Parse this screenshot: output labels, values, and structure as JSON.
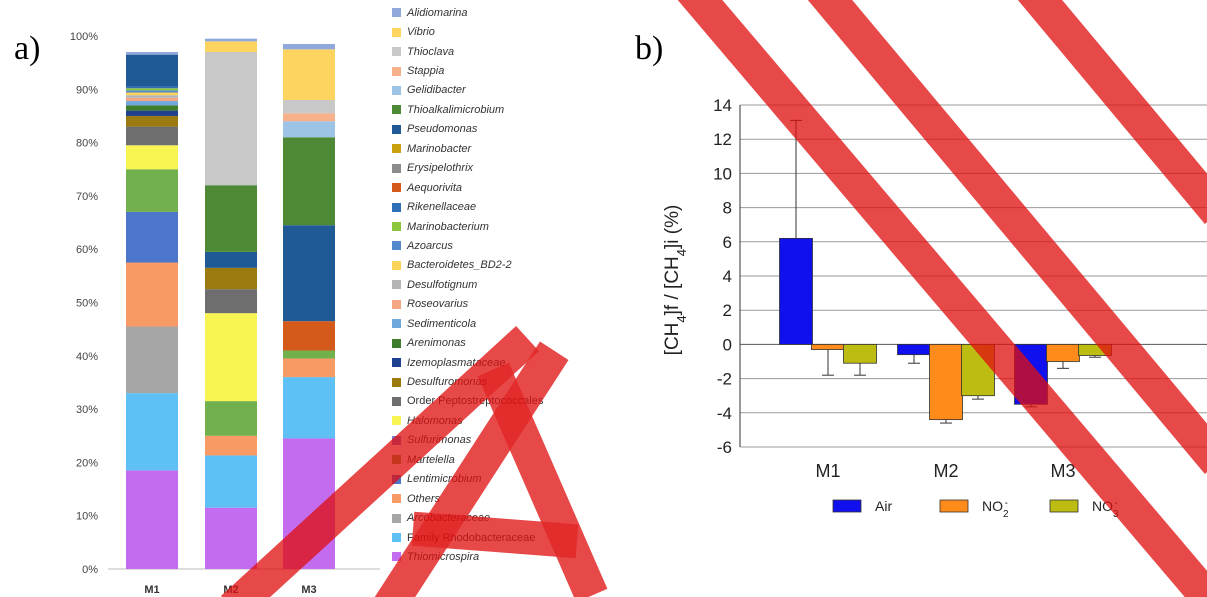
{
  "colors": {
    "watermark": "#e01010"
  },
  "panels": {
    "a_label": "a)",
    "b_label": "b)"
  },
  "chart_data": [
    {
      "type": "bar",
      "stacked": true,
      "categories": [
        "M1",
        "M2",
        "M3"
      ],
      "ylim": [
        0,
        100
      ],
      "yticks": [
        "0%",
        "10%",
        "20%",
        "30%",
        "40%",
        "50%",
        "60%",
        "70%",
        "80%",
        "90%",
        "100%"
      ],
      "series": [
        {
          "name": "Thiomicrospira",
          "color": "#c36cf0",
          "italic": true,
          "values": [
            18.5,
            11.5,
            24.5
          ]
        },
        {
          "name": "Family Rhodobacteraceae",
          "color": "#5fc0f6",
          "italic": false,
          "values": [
            14.5,
            9.8,
            11.5
          ]
        },
        {
          "name": "Arcobacteraceae",
          "color": "#a6a6a6",
          "italic": true,
          "values": [
            12.5,
            0,
            0
          ]
        },
        {
          "name": "Others",
          "color": "#f79a65",
          "italic": true,
          "values": [
            12,
            3.7,
            3.5
          ]
        },
        {
          "name": "Lentimicrobium",
          "color": "#4b76c9",
          "italic": true,
          "values": [
            9.5,
            0,
            0
          ]
        },
        {
          "name": "Martelella",
          "color": "#72b04e",
          "italic": true,
          "values": [
            8,
            6.5,
            1.5
          ]
        },
        {
          "name": "Sulfurimonas",
          "color": "#7a7ad0",
          "italic": true,
          "values": [
            0,
            0,
            0
          ]
        },
        {
          "name": "Halomonas",
          "color": "#f8f553",
          "italic": true,
          "values": [
            4.5,
            16.5,
            0
          ]
        },
        {
          "name": "Order Peptostreptococcales",
          "color": "#6e6e6e",
          "italic": false,
          "values": [
            3.5,
            4.5,
            0
          ]
        },
        {
          "name": "Desulfuromonas",
          "color": "#9b7a10",
          "italic": true,
          "values": [
            2,
            4,
            0
          ]
        },
        {
          "name": "Izemoplasmataceae",
          "color": "#1f3f8f",
          "italic": true,
          "values": [
            1,
            0,
            0
          ]
        },
        {
          "name": "Arenimonas",
          "color": "#3e7d2c",
          "italic": true,
          "values": [
            1,
            0,
            0
          ]
        },
        {
          "name": "Sedimenticola",
          "color": "#6fa8dc",
          "italic": true,
          "values": [
            0.8,
            0,
            0
          ]
        },
        {
          "name": "Roseovarius",
          "color": "#f4a582",
          "italic": true,
          "values": [
            0.6,
            0,
            0
          ]
        },
        {
          "name": "Desulfotignum",
          "color": "#b5b5b5",
          "italic": true,
          "values": [
            0.5,
            0,
            0
          ]
        },
        {
          "name": "Bacteroidetes_BD2-2",
          "color": "#fbd35a",
          "italic": true,
          "values": [
            0.5,
            0,
            0
          ]
        },
        {
          "name": "Azoarcus",
          "color": "#5588cc",
          "italic": true,
          "values": [
            0.4,
            0,
            0
          ]
        },
        {
          "name": "Marinobacterium",
          "color": "#8cc63e",
          "italic": true,
          "values": [
            0.4,
            0,
            0
          ]
        },
        {
          "name": "Rikenellaceae",
          "color": "#2f6fb5",
          "italic": true,
          "values": [
            0.3,
            0,
            0
          ]
        },
        {
          "name": "Aequorivita",
          "color": "#d35a1a",
          "italic": true,
          "values": [
            0,
            0,
            5.5
          ]
        },
        {
          "name": "Erysipelothrix",
          "color": "#8c8c8c",
          "italic": true,
          "values": [
            0,
            0,
            0
          ]
        },
        {
          "name": "Marinobacter",
          "color": "#c9a00e",
          "italic": true,
          "values": [
            0,
            0,
            0
          ]
        },
        {
          "name": "Pseudomonas",
          "color": "#1f5a96",
          "italic": true,
          "values": [
            6,
            3,
            18
          ]
        },
        {
          "name": "Thioalkalimicrobium",
          "color": "#4e8a35",
          "italic": true,
          "values": [
            0,
            12.5,
            16.5
          ]
        },
        {
          "name": "Gelidibacter",
          "color": "#9dc3e6",
          "italic": true,
          "values": [
            0,
            0,
            3
          ]
        },
        {
          "name": "Stappia",
          "color": "#f6b18a",
          "italic": true,
          "values": [
            0,
            0,
            1.5
          ]
        },
        {
          "name": "Thioclava",
          "color": "#c8c8c8",
          "italic": true,
          "values": [
            0,
            25,
            2.5
          ]
        },
        {
          "name": "Vibrio",
          "color": "#fcd45f",
          "italic": true,
          "values": [
            0,
            2,
            9.5
          ]
        },
        {
          "name": "Alidiomarina",
          "color": "#8fa9dc",
          "italic": true,
          "values": [
            0.5,
            0.5,
            1
          ]
        }
      ],
      "legend_order": [
        "Alidiomarina",
        "Vibrio",
        "Thioclava",
        "Stappia",
        "Gelidibacter",
        "Thioalkalimicrobium",
        "Pseudomonas",
        "Marinobacter",
        "Erysipelothrix",
        "Aequorivita",
        "Rikenellaceae",
        "Marinobacterium",
        "Azoarcus",
        "Bacteroidetes_BD2-2",
        "Desulfotignum",
        "Roseovarius",
        "Sedimenticola",
        "Arenimonas",
        "Izemoplasmataceae",
        "Desulfuromonas",
        "Order Peptostreptococcales",
        "Halomonas",
        "Sulfurimonas",
        "Martelella",
        "Lentimicrobium",
        "Others",
        "Arcobacteraceae",
        "Family Rhodobacteraceae",
        "Thiomicrospira"
      ],
      "legend_placement": "right"
    },
    {
      "type": "bar",
      "categories": [
        "M1",
        "M2",
        "M3"
      ],
      "ylabel_parts": [
        "[CH",
        "4",
        "]f / [CH",
        "4",
        "]i (%)"
      ],
      "ylim": [
        -6,
        14
      ],
      "yticks": [
        "-6",
        "-4",
        "-2",
        "0",
        "2",
        "4",
        "6",
        "8",
        "10",
        "12",
        "14"
      ],
      "grid": true,
      "series": [
        {
          "name": "Air",
          "name_sup": "",
          "name_sub": "",
          "color": "#1010ee",
          "values": [
            6.2,
            -0.6,
            -3.5
          ],
          "errors": [
            6.9,
            0.5,
            0.15
          ]
        },
        {
          "name": "NO",
          "name_sub": "2",
          "name_sup": "-",
          "color": "#ff8c1a",
          "values": [
            -0.3,
            -4.4,
            -1.0
          ],
          "errors": [
            1.5,
            0.2,
            0.4
          ]
        },
        {
          "name": "NO",
          "name_sub": "3",
          "name_sup": "-",
          "color": "#bcbc12",
          "values": [
            -1.1,
            -3.0,
            -0.65
          ],
          "errors": [
            0.7,
            0.2,
            0.1
          ]
        }
      ],
      "legend_placement": "bottom"
    }
  ]
}
